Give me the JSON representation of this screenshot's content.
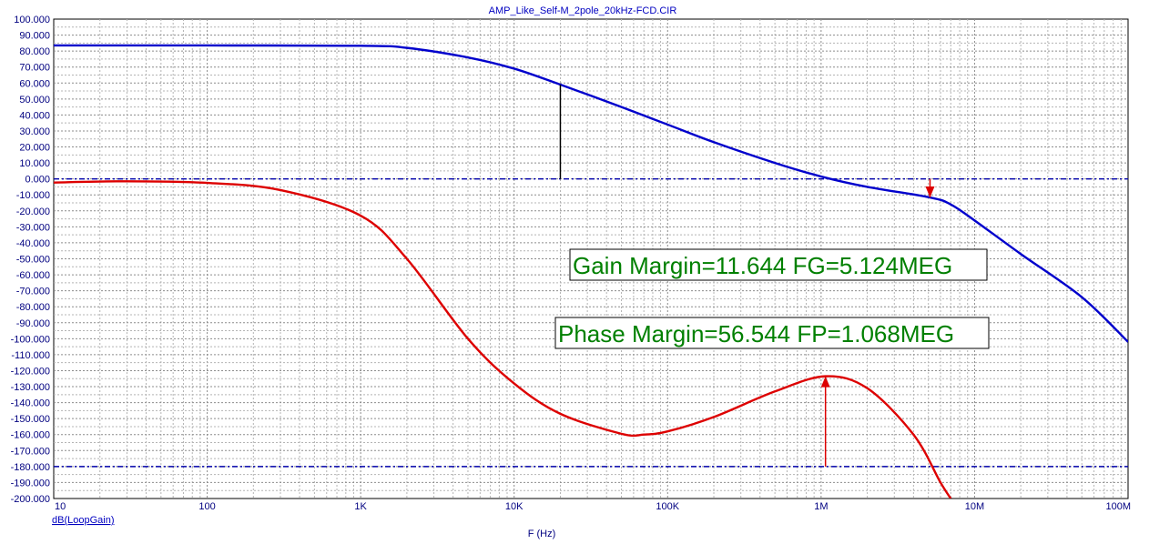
{
  "chart_data": {
    "type": "line",
    "title": "AMP_Like_Self-M_2pole_20kHz-FCD.CIR",
    "xlabel": "F (Hz)",
    "ylabel": "dB(LoopGain)",
    "x_scale": "log",
    "xlim": [
      10,
      100000000
    ],
    "ylim": [
      -200,
      100
    ],
    "grid": true,
    "x_ticks": [
      {
        "value": 10,
        "label": "10"
      },
      {
        "value": 100,
        "label": "100"
      },
      {
        "value": 1000,
        "label": "1K"
      },
      {
        "value": 10000,
        "label": "10K"
      },
      {
        "value": 100000,
        "label": "100K"
      },
      {
        "value": 1000000,
        "label": "1M"
      },
      {
        "value": 10000000,
        "label": "10M"
      },
      {
        "value": 100000000,
        "label": "100M"
      }
    ],
    "y_ticks": [
      "100.000",
      "90.000",
      "80.000",
      "70.000",
      "60.000",
      "50.000",
      "40.000",
      "30.000",
      "20.000",
      "10.000",
      "0.000",
      "-10.000",
      "-20.000",
      "-30.000",
      "-40.000",
      "-50.000",
      "-60.000",
      "-70.000",
      "-80.000",
      "-90.000",
      "-100.000",
      "-110.000",
      "-120.000",
      "-130.000",
      "-140.000",
      "-150.000",
      "-160.000",
      "-170.000",
      "-180.000",
      "-190.000",
      "-200.000"
    ],
    "series": [
      {
        "color": "#0000cc",
        "x": [
          10,
          100,
          1000,
          2000,
          5000,
          10000,
          20000,
          50000,
          100000,
          200000,
          500000,
          1000000,
          2000000,
          5124000,
          7000000,
          10000000,
          20000000,
          50000000,
          100000000
        ],
        "y": [
          83.5,
          83.5,
          83.3,
          82.0,
          76.0,
          69.0,
          59.0,
          45.0,
          34.0,
          23.0,
          10.0,
          1.5,
          -5.0,
          -11.6,
          -16.0,
          -26.0,
          -47.0,
          -74.0,
          -102.0
        ]
      },
      {
        "color": "#dd0000",
        "x": [
          10,
          30,
          100,
          300,
          1000,
          2000,
          5000,
          10000,
          20000,
          50000,
          70000,
          100000,
          200000,
          500000,
          1068000,
          2000000,
          4000000,
          6000000,
          7000000
        ],
        "y": [
          -2.3,
          -1.5,
          -2.5,
          -7.0,
          -23.0,
          -50.0,
          -100.0,
          -128.0,
          -147.0,
          -159.5,
          -160.0,
          -158.0,
          -149.0,
          -133.0,
          -123.5,
          -131.0,
          -160.0,
          -190.0,
          -200.0
        ]
      }
    ],
    "reference_lines": [
      {
        "y": 0,
        "color": "#0000aa",
        "style": "dash-dot"
      },
      {
        "y": -180,
        "color": "#0000aa",
        "style": "dash-dot"
      }
    ],
    "markers": [
      {
        "kind": "vline",
        "x": 20000,
        "from": 0,
        "to": 59.0,
        "color": "#000000"
      },
      {
        "kind": "arrow-down",
        "x": 5124000,
        "from": 0,
        "to": -11.6,
        "color": "#dd0000"
      },
      {
        "kind": "arrow-up",
        "x": 1068000,
        "from": -180,
        "to": -123.5,
        "color": "#dd0000"
      }
    ],
    "annotations": [
      {
        "text": "Gain Margin=11.644 FG=5.124MEG"
      },
      {
        "text": "Phase Margin=56.544 FP=1.068MEG"
      }
    ]
  }
}
